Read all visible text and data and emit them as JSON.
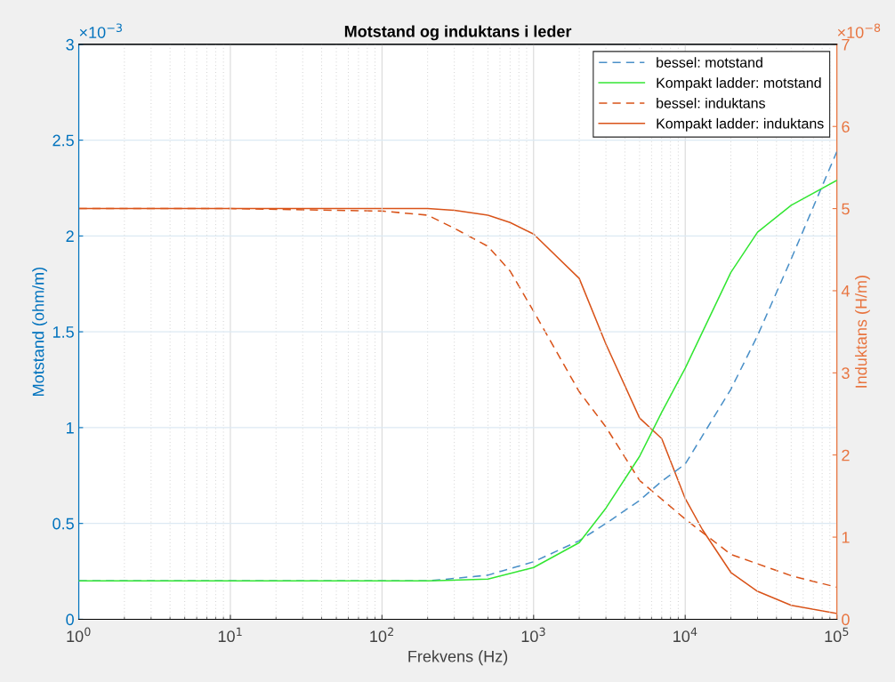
{
  "chart_data": {
    "type": "line",
    "title": "Motstand og induktans i leder",
    "xlabel": "Frekvens (Hz)",
    "ylabel": "Motstand (ohm/m)",
    "y2label": "Induktans (H/m)",
    "annotations": [
      "×10$^{−3}$",
      "×10$^{−8}$"
    ],
    "log": "x",
    "grid": true,
    "legend": "top right",
    "xlim": [
      1,
      100000
    ],
    "xticks": [
      {
        "value": 1,
        "label": "10$^{0}$"
      },
      {
        "value": 10,
        "label": "10$^{1}$"
      },
      {
        "value": 100,
        "label": "10$^{2}$"
      },
      {
        "value": 1000,
        "label": "10$^{3}$"
      },
      {
        "value": 10000,
        "label": "10$^{4}$"
      },
      {
        "value": 100000,
        "label": "10$^{5}$"
      }
    ],
    "ylim": [
      0,
      3
    ],
    "yticks": [
      0,
      0.5,
      1,
      1.5,
      2,
      2.5,
      3
    ],
    "y2lim": [
      0,
      7
    ],
    "y2ticks": [
      0,
      1,
      2,
      3,
      4,
      5,
      6,
      7
    ],
    "series": [
      {
        "name": "bessel: motstand",
        "color": "#4a90c8",
        "line_style": "dashed",
        "x": [
          1,
          10,
          100,
          200,
          500,
          1000,
          2000,
          3000,
          5000,
          7000,
          10000,
          20000,
          30000,
          50000,
          100000
        ],
        "values": [
          0.2,
          0.2,
          0.2,
          0.2,
          0.23,
          0.3,
          0.41,
          0.5,
          0.62,
          0.72,
          0.81,
          1.2,
          1.48,
          1.88,
          2.44
        ]
      },
      {
        "name": "Kompakt ladder: motstand",
        "color": "#33e633",
        "line_style": "solid",
        "x": [
          1,
          10,
          100,
          200,
          500,
          1000,
          2000,
          3000,
          5000,
          7000,
          10000,
          20000,
          30000,
          50000,
          100000
        ],
        "values": [
          0.2,
          0.2,
          0.2,
          0.2,
          0.21,
          0.27,
          0.4,
          0.58,
          0.85,
          1.08,
          1.31,
          1.81,
          2.02,
          2.16,
          2.29
        ]
      },
      {
        "name": "bessel: induktans",
        "color": "#d95319",
        "line_style": "dashed",
        "axis": "y2",
        "x": [
          1,
          10,
          100,
          200,
          300,
          500,
          700,
          1000,
          2000,
          3000,
          5000,
          10000,
          20000,
          50000,
          100000
        ],
        "values": [
          5.0,
          5.0,
          4.97,
          4.92,
          4.76,
          4.54,
          4.24,
          3.75,
          2.77,
          2.34,
          1.69,
          1.22,
          0.79,
          0.53,
          0.39
        ]
      },
      {
        "name": "Kompakt ladder: induktans",
        "color": "#d95319",
        "line_style": "solid",
        "axis": "y2",
        "x": [
          1,
          10,
          100,
          200,
          300,
          500,
          700,
          1000,
          2000,
          3000,
          5000,
          7000,
          10000,
          13000,
          20000,
          30000,
          50000,
          100000
        ],
        "values": [
          5.0,
          5.0,
          5.0,
          5.0,
          4.98,
          4.92,
          4.83,
          4.69,
          4.15,
          3.35,
          2.45,
          2.2,
          1.47,
          1.09,
          0.57,
          0.34,
          0.17,
          0.07
        ]
      }
    ]
  }
}
